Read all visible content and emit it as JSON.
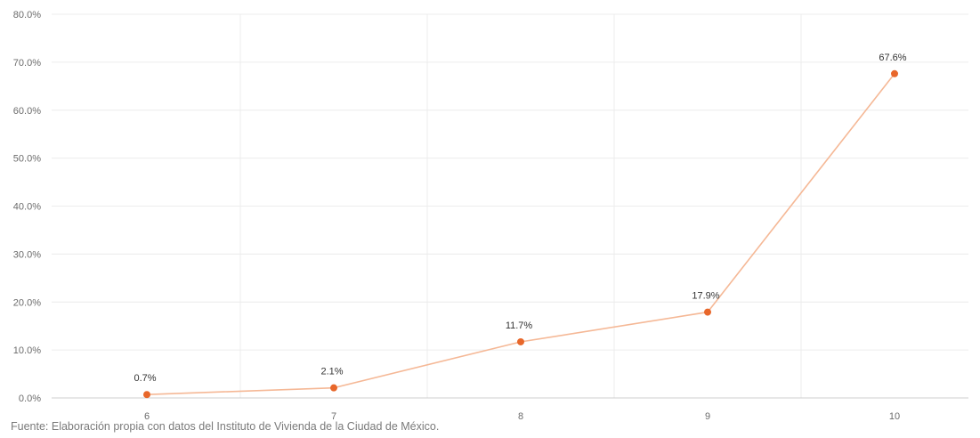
{
  "chart_data": {
    "type": "line",
    "title": "",
    "xlabel": "",
    "ylabel": "",
    "categories": [
      "6",
      "7",
      "8",
      "9",
      "10"
    ],
    "series": [
      {
        "values": [
          0.7,
          2.1,
          11.7,
          17.9,
          67.6
        ]
      }
    ],
    "data_labels": [
      "0.7%",
      "2.1%",
      "11.7%",
      "17.9%",
      "67.6%"
    ],
    "ylim": [
      0,
      80
    ],
    "yticks": [
      "0.0%",
      "10.0%",
      "20.0%",
      "30.0%",
      "40.0%",
      "50.0%",
      "60.0%",
      "70.0%",
      "80.0%"
    ],
    "grid": true,
    "legend": "none",
    "colors": {
      "line": "#f5b896",
      "marker": "#e8672a"
    }
  },
  "source_note": "Fuente: Elaboración propia con datos del Instituto de Vivienda de la Ciudad de México."
}
